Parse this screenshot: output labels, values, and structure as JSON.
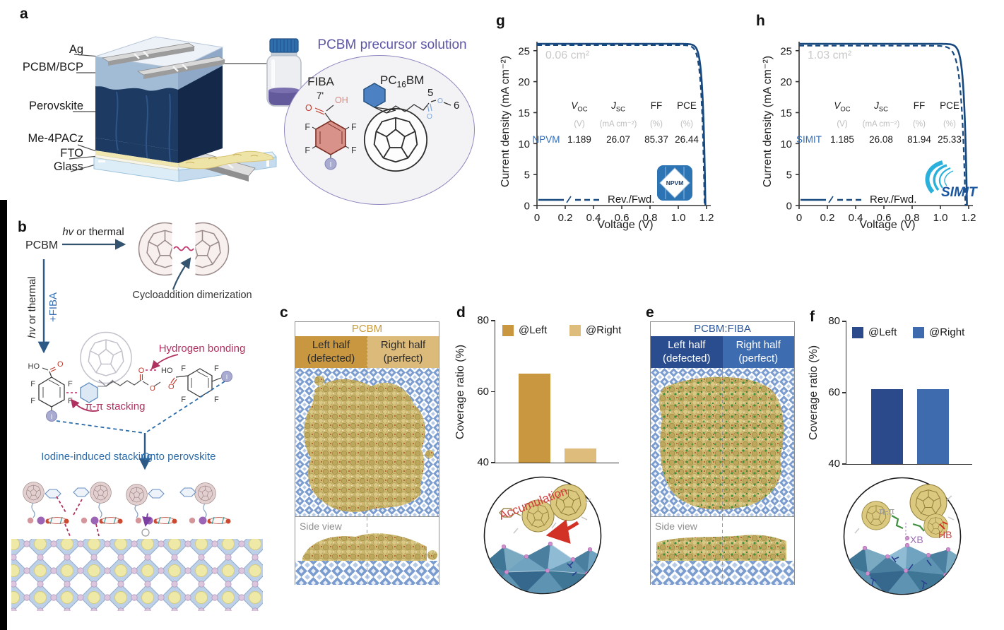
{
  "atoms": {
    "F": "F",
    "O": "O",
    "OH": "OH",
    "HO": "HO",
    "I": "I"
  },
  "panels": {
    "a": {
      "label": "a",
      "layers": [
        "Ag",
        "PCBM/BCP",
        "Perovskite",
        "Me-4PACz",
        "FTO",
        "Glass"
      ],
      "solution": {
        "title": "PCBM precursor solution",
        "fiba": "FIBA",
        "pc": "PC",
        "pc_sub": "16",
        "bm": "BM",
        "n7": "7'",
        "n5": "5",
        "n6": "6"
      }
    },
    "b": {
      "label": "b",
      "pcbm": "PCBM",
      "hv_i": "hv",
      "hv_r": "or thermal",
      "fiba": "+FIBA",
      "cyclo": "Cycloaddition dimerization",
      "hbond": "Hydrogen bonding",
      "pipi": "π-π stacking",
      "iodine": "Iodine-induced stacking",
      "onto": "Onto perovskite"
    },
    "c": {
      "label": "c",
      "title": "PCBM",
      "left_l1": "Left half",
      "left_l2": "(defected)",
      "right_l1": "Right half",
      "right_l2": "(perfect)",
      "side": "Side view",
      "title_color": "#C49A40",
      "left_bg": "#C9973F",
      "right_bg": "#DCBA7A"
    },
    "d": {
      "label": "d",
      "inset": "Accumulation"
    },
    "e": {
      "label": "e",
      "title": "PCBM:FIBA",
      "left_l1": "Left half",
      "left_l2": "(defected)",
      "right_l1": "Right half",
      "right_l2": "(perfect)",
      "side": "Side view",
      "title_color": "#2B5496",
      "left_bg": "#2A4D8F",
      "right_bg": "#3E6CB0"
    },
    "f": {
      "label": "f",
      "pipi": "π-π",
      "xb": "XB",
      "hb": "HB"
    },
    "g": {
      "label": "g"
    },
    "h": {
      "label": "h"
    }
  },
  "chart_data": [
    {
      "id": "bar-d",
      "type": "bar",
      "panel": "d",
      "categories": [
        "@Left",
        "@Right"
      ],
      "values": [
        65,
        44
      ],
      "bar_colors": [
        "#C9973F",
        "#DDBC7C"
      ],
      "ylabel": "Coverage ratio (%)",
      "ylim": [
        40,
        80
      ],
      "yticks": [
        40,
        60,
        80
      ],
      "legend_position": "top-inside",
      "grid": false
    },
    {
      "id": "bar-f",
      "type": "bar",
      "panel": "f",
      "categories": [
        "@Left",
        "@Right"
      ],
      "values": [
        61,
        61
      ],
      "bar_colors": [
        "#2A4A8C",
        "#3D6BAE"
      ],
      "ylabel": "Coverage ratio (%)",
      "ylim": [
        40,
        80
      ],
      "yticks": [
        40,
        60,
        80
      ],
      "legend_position": "top-inside",
      "grid": false
    },
    {
      "id": "jv-g",
      "type": "line",
      "panel": "g",
      "area_label": "0.06 cm²",
      "xlabel": "Voltage (V)",
      "ylabel": "Current density (mA cm⁻²)",
      "xlim": [
        0,
        1.2
      ],
      "ylim": [
        0,
        27.5
      ],
      "xticks": [
        "0",
        "0.2",
        "0.4",
        "0.6",
        "0.8",
        "1.0",
        "1.2"
      ],
      "yticks": [
        "0",
        "5",
        "10",
        "15",
        "20",
        "25"
      ],
      "legend": "Rev./Fwd.",
      "curve_color": "#17497F",
      "logo": "NPVM",
      "series": [
        {
          "name": "Rev.",
          "style": "solid",
          "voc": 1.192,
          "jsc": 26.1,
          "knee": 0.018
        },
        {
          "name": "Fwd.",
          "style": "dashed",
          "voc": 1.186,
          "jsc": 25.9,
          "knee": 0.02
        }
      ],
      "table": {
        "voc_sym": "V",
        "voc_sub": "OC",
        "jsc_sym": "J",
        "jsc_sub": "SC",
        "ff": "FF",
        "pce": "PCE",
        "voc_unit": "(V)",
        "jsc_unit": "(mA cm⁻²)",
        "ff_unit": "(%)",
        "pce_unit": "(%)",
        "device": "NPVM",
        "voc": "1.189",
        "jsc": "26.07",
        "ff_val": "85.37",
        "pce_val": "26.44"
      }
    },
    {
      "id": "jv-h",
      "type": "line",
      "panel": "h",
      "area_label": "1.03 cm²",
      "xlabel": "Voltage (V)",
      "ylabel": "Current density (mA cm⁻²)",
      "xlim": [
        0,
        1.2
      ],
      "ylim": [
        0,
        27.5
      ],
      "xticks": [
        "0",
        "0.2",
        "0.4",
        "0.6",
        "0.8",
        "1.0",
        "1.2"
      ],
      "yticks": [
        "0",
        "5",
        "10",
        "15",
        "20",
        "25"
      ],
      "legend": "Rev./Fwd.",
      "curve_color": "#17497F",
      "logo": "SIMIT",
      "series": [
        {
          "name": "Rev.",
          "style": "solid",
          "voc": 1.188,
          "jsc": 26.1,
          "knee": 0.02
        },
        {
          "name": "Fwd.",
          "style": "dashed",
          "voc": 1.177,
          "jsc": 25.8,
          "knee": 0.028
        }
      ],
      "table": {
        "voc_sym": "V",
        "voc_sub": "OC",
        "jsc_sym": "J",
        "jsc_sub": "SC",
        "ff": "FF",
        "pce": "PCE",
        "voc_unit": "(V)",
        "jsc_unit": "(mA cm⁻²)",
        "ff_unit": "(%)",
        "pce_unit": "(%)",
        "device": "SIMIT",
        "voc": "1.185",
        "jsc": "26.08",
        "ff_val": "81.94",
        "pce_val": "25.33"
      }
    }
  ]
}
